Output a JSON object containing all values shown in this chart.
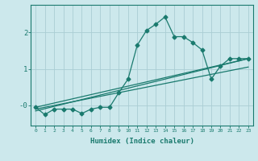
{
  "xlabel": "Humidex (Indice chaleur)",
  "ylabel": "",
  "bg_color": "#cce8ec",
  "grid_color": "#aacdd4",
  "line_color": "#1a7a6e",
  "marker_color": "#1a7a6e",
  "xlim": [
    -0.5,
    23.5
  ],
  "ylim": [
    -0.55,
    2.75
  ],
  "yticks": [
    0,
    1,
    2
  ],
  "ytick_labels": [
    "-0",
    "1",
    "2"
  ],
  "xticks": [
    0,
    1,
    2,
    3,
    4,
    5,
    6,
    7,
    8,
    9,
    10,
    11,
    12,
    13,
    14,
    15,
    16,
    17,
    18,
    19,
    20,
    21,
    22,
    23
  ],
  "series1_x": [
    0,
    1,
    2,
    3,
    4,
    5,
    6,
    7,
    8,
    9,
    10,
    11,
    12,
    13,
    14,
    15,
    16,
    17,
    18,
    19,
    20,
    21,
    22,
    23
  ],
  "series1_y": [
    -0.05,
    -0.25,
    -0.1,
    -0.1,
    -0.1,
    -0.22,
    -0.1,
    -0.05,
    -0.05,
    0.35,
    0.72,
    1.65,
    2.05,
    2.22,
    2.42,
    1.88,
    1.88,
    1.72,
    1.52,
    0.72,
    1.08,
    1.28,
    1.28,
    1.28
  ],
  "series2_x": [
    0,
    23
  ],
  "series2_y": [
    -0.15,
    1.28
  ],
  "series3_x": [
    0,
    23
  ],
  "series3_y": [
    -0.1,
    1.05
  ],
  "series4_x": [
    0,
    23
  ],
  "series4_y": [
    -0.05,
    1.28
  ]
}
